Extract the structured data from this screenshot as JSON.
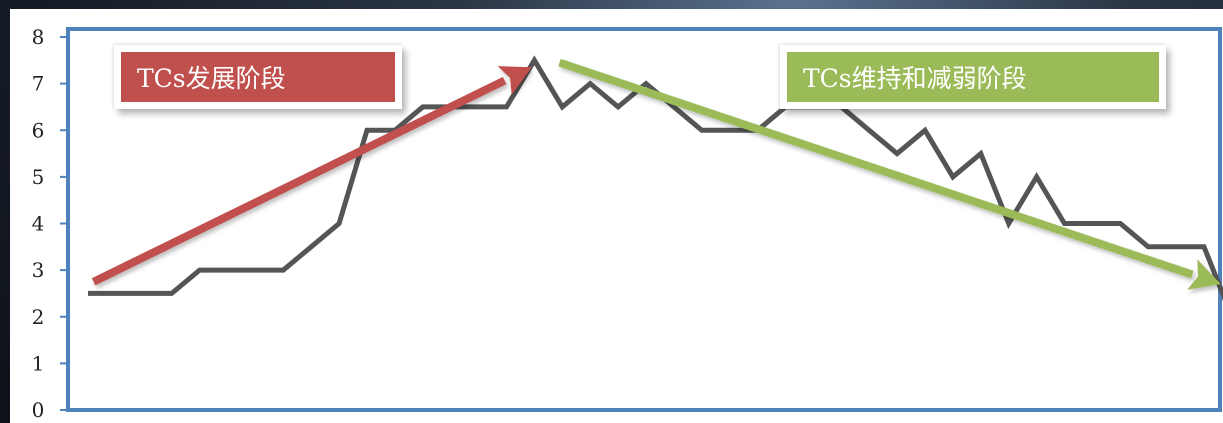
{
  "chart_data": {
    "type": "line",
    "title": "",
    "xlabel": "",
    "ylabel": "",
    "ylim": [
      0,
      8
    ],
    "yticks": [
      "0",
      "1",
      "2",
      "3",
      "4",
      "5",
      "6",
      "7",
      "8"
    ],
    "grid": false,
    "series": [
      {
        "values": [
          2.5,
          2.5,
          2.5,
          2.5,
          3,
          3,
          3,
          3,
          3.5,
          4,
          6,
          6,
          6.5,
          6.5,
          6.5,
          6.5,
          7.5,
          6.5,
          7,
          6.5,
          7,
          6.5,
          6,
          6,
          6,
          6.5,
          6.5,
          6.5,
          6,
          5.5,
          6,
          5,
          5.5,
          4,
          5,
          4,
          4,
          4,
          3.5,
          3.5,
          3.5,
          2
        ]
      }
    ],
    "annotations": [
      {
        "text": "TCs发展阶段",
        "color": "#c0504d",
        "arrow_from": [
          0.2,
          2.75
        ],
        "arrow_to": [
          15.9,
          7.35
        ]
      },
      {
        "text": "TCs维持和减弱阶段",
        "color": "#9bbb59",
        "arrow_from": [
          16.9,
          7.45
        ],
        "arrow_to": [
          40.6,
          2.7
        ]
      }
    ]
  },
  "colors": {
    "line": "#555555",
    "frame": "#4f81bd",
    "development": "#c0504d",
    "maintenance": "#9bbb59"
  }
}
